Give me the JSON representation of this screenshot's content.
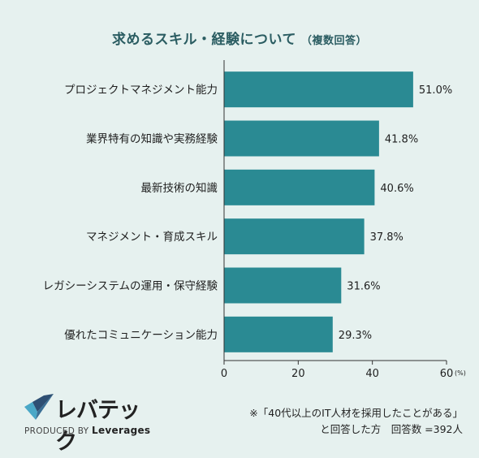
{
  "title": "求めるスキル・経験について",
  "subtitle": "（複数回答）",
  "footnote_line1": "※「40代以上のIT人材を採用したことがある」",
  "footnote_line2": "と回答した方　回答数 =392人",
  "logo": {
    "wordmark": "レバテック",
    "tagline_prefix": "PRODUCED BY",
    "tagline_brand": "Leverages",
    "colors": {
      "mark_dark": "#2e4f73",
      "mark_light": "#4aa8c7"
    }
  },
  "colors": {
    "bar": "#2a8a93",
    "axis": "#333333",
    "background": "#e6f1ef",
    "title": "#2b5d62"
  },
  "chart_data": {
    "type": "bar",
    "orientation": "horizontal",
    "categories": [
      "プロジェクトマネジメント能力",
      "業界特有の知識や実務経験",
      "最新技術の知識",
      "マネジメント・育成スキル",
      "レガシーシステムの運用・保守経験",
      "優れたコミュニケーション能力"
    ],
    "values": [
      51.0,
      41.8,
      40.6,
      37.8,
      31.6,
      29.3
    ],
    "value_labels": [
      "51.0%",
      "41.8%",
      "40.6%",
      "37.8%",
      "31.6%",
      "29.3%"
    ],
    "xlim": [
      0,
      60
    ],
    "xticks": [
      0,
      20,
      40,
      60
    ],
    "x_unit": "(%)",
    "grid": false,
    "legend": "none"
  }
}
